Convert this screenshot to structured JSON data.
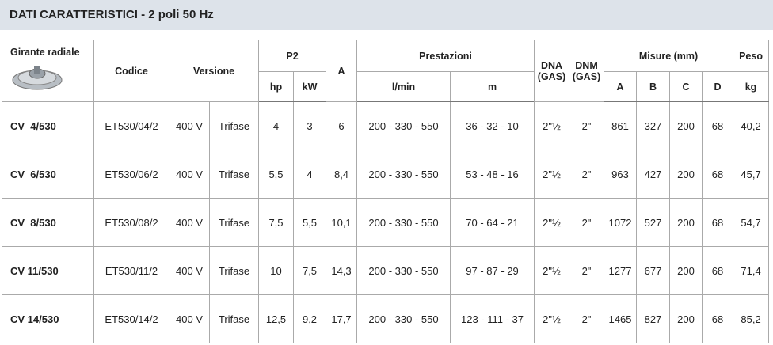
{
  "header": {
    "title": "DATI CARATTERISTICI - 2 poli 50 Hz"
  },
  "table": {
    "header_row1": [
      "Girante radiale",
      "Codice",
      "Versione",
      "P2",
      "A",
      "Prestazioni",
      "DNA (GAS)",
      "DNM (GAS)",
      "Misure (mm)",
      "Peso"
    ],
    "header_row2": [
      "hp",
      "kW",
      "l/min",
      "m",
      "A",
      "B",
      "C",
      "D",
      "kg"
    ],
    "rows": [
      [
        "CV  4/530",
        "ET530/04/2",
        "400 V",
        "Trifase",
        "4",
        "3",
        "6",
        "200 - 330 - 550",
        "36 - 32 - 10",
        "2\"½",
        "2\"",
        "861",
        "327",
        "200",
        "68",
        "40,2"
      ],
      [
        "CV  6/530",
        "ET530/06/2",
        "400 V",
        "Trifase",
        "5,5",
        "4",
        "8,4",
        "200 - 330 - 550",
        "53 - 48 - 16",
        "2\"½",
        "2\"",
        "963",
        "427",
        "200",
        "68",
        "45,7"
      ],
      [
        "CV  8/530",
        "ET530/08/2",
        "400 V",
        "Trifase",
        "7,5",
        "5,5",
        "10,1",
        "200 - 330 - 550",
        "70 - 64 - 21",
        "2\"½",
        "2\"",
        "1072",
        "527",
        "200",
        "68",
        "54,7"
      ],
      [
        "CV 11/530",
        "ET530/11/2",
        "400 V",
        "Trifase",
        "10",
        "7,5",
        "14,3",
        "200 - 330 - 550",
        "97 - 87 - 29",
        "2\"½",
        "2\"",
        "1277",
        "677",
        "200",
        "68",
        "71,4"
      ],
      [
        "CV 14/530",
        "ET530/14/2",
        "400 V",
        "Trifase",
        "12,5",
        "9,2",
        "17,7",
        "200 - 330 - 550",
        "123 - 111 - 37",
        "2\"½",
        "2\"",
        "1465",
        "827",
        "200",
        "68",
        "85,2"
      ]
    ]
  }
}
